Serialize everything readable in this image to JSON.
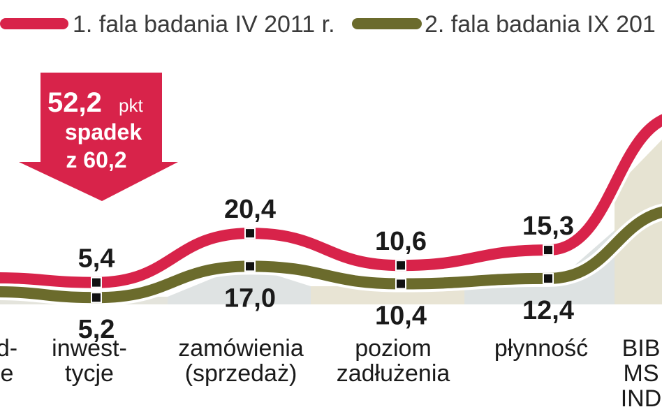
{
  "chart_data": {
    "type": "line",
    "title": "",
    "xlabel": "",
    "ylabel": "",
    "categories": [
      [
        "d-",
        "e"
      ],
      [
        "inwest-",
        "tycje"
      ],
      [
        "zamówienia",
        "(sprzedaż)"
      ],
      [
        "poziom",
        "zadłużenia"
      ],
      [
        "płynność"
      ],
      [
        "BIB",
        "MS",
        "IND"
      ]
    ],
    "series": [
      {
        "name": "1. fala badania IV 2011 r.",
        "color": "#d8234a",
        "values": [
          null,
          5.4,
          20.4,
          10.6,
          15.3,
          null
        ],
        "labels": [
          "",
          "5,4",
          "20,4",
          "10,6",
          "15,3",
          ""
        ]
      },
      {
        "name": "2. fala badania IX 201",
        "color": "#6b6b2c",
        "values": [
          null,
          5.2,
          17.0,
          10.4,
          12.4,
          null
        ],
        "labels": [
          "",
          "5,2",
          "17,0",
          "10,4",
          "12,4",
          ""
        ]
      }
    ],
    "callout": {
      "value": "52,2",
      "unit": "pkt",
      "line1": "spadek",
      "line2": "z 60,2",
      "color": "#d8234a"
    },
    "ylim": [
      0,
      60
    ],
    "grid": false,
    "legend_position": "top"
  }
}
